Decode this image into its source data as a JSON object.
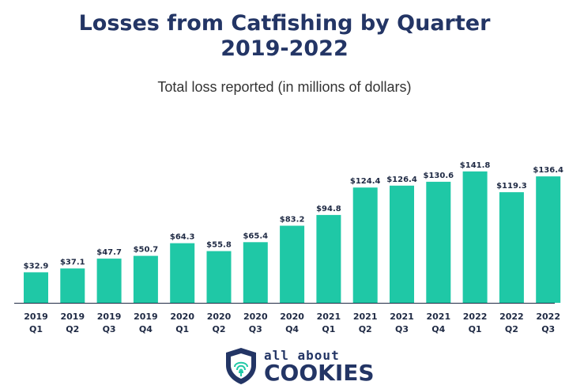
{
  "header": {
    "title_line1": "Losses from Catfishing by Quarter",
    "title_line2": "2019-2022",
    "subtitle": "Total loss reported (in millions of dollars)"
  },
  "logo": {
    "small_text": "all about",
    "big_text": "COOKIES"
  },
  "colors": {
    "bar": "#1fc8a6",
    "title": "#233565",
    "axis": "#1f2a44"
  },
  "chart_data": {
    "type": "bar",
    "title": "Losses from Catfishing by Quarter 2019-2022",
    "subtitle": "Total loss reported (in millions of dollars)",
    "categories": [
      {
        "year": "2019",
        "quarter": "Q1"
      },
      {
        "year": "2019",
        "quarter": "Q2"
      },
      {
        "year": "2019",
        "quarter": "Q3"
      },
      {
        "year": "2019",
        "quarter": "Q4"
      },
      {
        "year": "2020",
        "quarter": "Q1"
      },
      {
        "year": "2020",
        "quarter": "Q2"
      },
      {
        "year": "2020",
        "quarter": "Q3"
      },
      {
        "year": "2020",
        "quarter": "Q4"
      },
      {
        "year": "2021",
        "quarter": "Q1"
      },
      {
        "year": "2021",
        "quarter": "Q2"
      },
      {
        "year": "2021",
        "quarter": "Q3"
      },
      {
        "year": "2021",
        "quarter": "Q4"
      },
      {
        "year": "2022",
        "quarter": "Q1"
      },
      {
        "year": "2022",
        "quarter": "Q2"
      },
      {
        "year": "2022",
        "quarter": "Q3"
      }
    ],
    "values": [
      32.9,
      37.1,
      47.7,
      50.7,
      64.3,
      55.8,
      65.4,
      83.2,
      94.8,
      124.4,
      126.4,
      130.6,
      141.8,
      119.3,
      136.4
    ],
    "value_labels": [
      "$32.9",
      "$37.1",
      "$47.7",
      "$50.7",
      "$64.3",
      "$55.8",
      "$65.4",
      "$83.2",
      "$94.8",
      "$124.4",
      "$126.4",
      "$130.6",
      "$141.8",
      "$119.3",
      "$136.4"
    ],
    "ylim": [
      0,
      145
    ],
    "grid": false,
    "legend": "none"
  }
}
